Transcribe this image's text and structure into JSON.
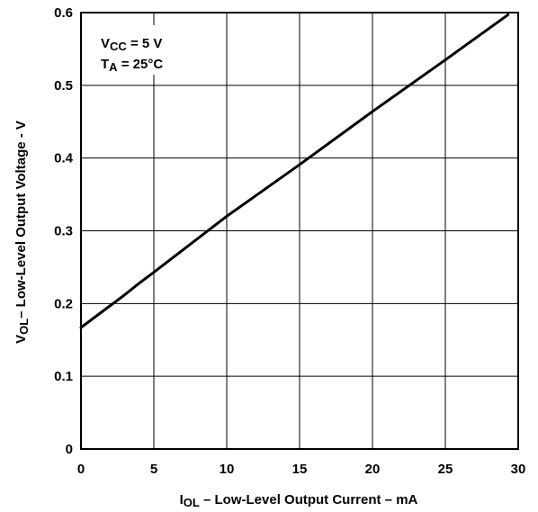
{
  "chart_data": {
    "type": "line",
    "title": "",
    "xlabel": {
      "main": "I",
      "sub": "OL",
      "rest": " – Low-Level Output Current – mA"
    },
    "ylabel": {
      "main": "V",
      "sub": "OL",
      "rest": "– Low-Level Output Voltage - V"
    },
    "xlim": [
      0,
      30
    ],
    "ylim": [
      0,
      0.6
    ],
    "xticks": [
      0,
      5,
      10,
      15,
      20,
      25,
      30
    ],
    "xtick_labels": [
      "0",
      "5",
      "10",
      "15",
      "20",
      "25",
      "30"
    ],
    "yticks": [
      0,
      0.1,
      0.2,
      0.3,
      0.4,
      0.5,
      0.6
    ],
    "ytick_labels": [
      "0",
      "0.1",
      "0.2",
      "0.3",
      "0.4",
      "0.5",
      "0.6"
    ],
    "grid": true,
    "legend": "none",
    "annotations": [
      {
        "main": "V",
        "sub": "CC",
        "rest": " = 5 V"
      },
      {
        "main": "T",
        "sub": "A",
        "rest": " = 25°C"
      }
    ],
    "series": [
      {
        "x": [
          0,
          1,
          2,
          3,
          4,
          5,
          10,
          15,
          20,
          25,
          29.3
        ],
        "y": [
          0.167,
          0.182,
          0.197,
          0.212,
          0.228,
          0.243,
          0.32,
          0.391,
          0.464,
          0.535,
          0.597
        ],
        "color": "#000000"
      }
    ]
  }
}
